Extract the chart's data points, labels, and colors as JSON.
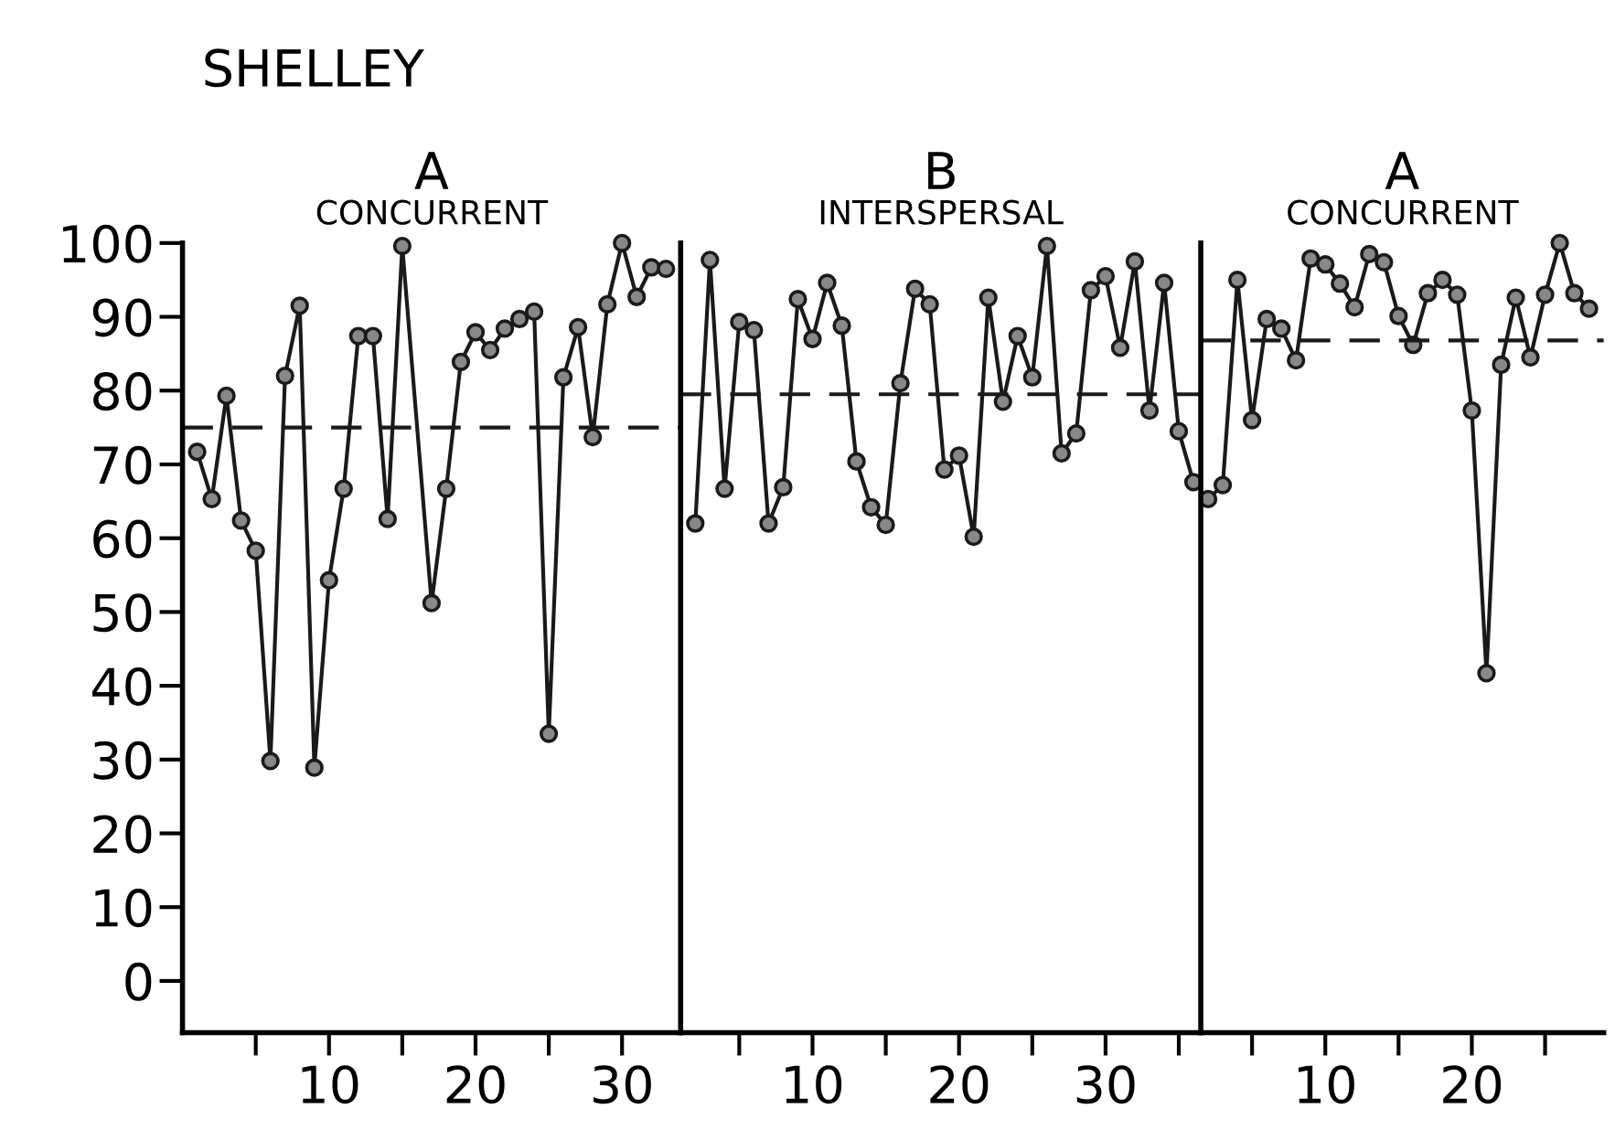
{
  "chart_data": [
    {
      "type": "line",
      "title": "SHELLEY",
      "annotations": [
        "A",
        "CONCURRENT"
      ],
      "series": [
        {
          "color": "#1a1a1a",
          "marker": "circle",
          "x": [
            1,
            2,
            3,
            4,
            5,
            6,
            7,
            8,
            9,
            10,
            11,
            12,
            13,
            14,
            15,
            17,
            18,
            19,
            20,
            21,
            22,
            23,
            24,
            25,
            26,
            27,
            28,
            29,
            30,
            31,
            32,
            33
          ],
          "values": [
            71.7,
            65.3,
            79.3,
            62.4,
            58.3,
            29.8,
            82.0,
            91.5,
            28.9,
            54.3,
            66.7,
            87.4,
            87.4,
            62.6,
            99.6,
            51.2,
            66.7,
            83.9,
            87.9,
            85.5,
            88.4,
            89.7,
            90.7,
            33.5,
            81.8,
            88.6,
            73.7,
            91.7,
            100,
            92.7,
            96.7,
            96.5
          ]
        },
        {
          "color": "#1a1a1a",
          "marker": "none",
          "line_style": "dashed",
          "x": [
            0,
            34
          ],
          "values": [
            75,
            75
          ]
        }
      ],
      "xlim": [
        0,
        34
      ],
      "xticks": [
        {
          "value": 5,
          "label": null
        },
        10,
        {
          "value": 15,
          "label": null
        },
        20,
        {
          "value": 25,
          "label": null
        },
        30
      ],
      "ylim": [
        -7,
        100
      ],
      "yticks": [
        0,
        10,
        20,
        30,
        40,
        50,
        60,
        70,
        80,
        90,
        100
      ],
      "grid": false
    },
    {
      "type": "line",
      "annotations": [
        "B",
        "INTERSPERSAL"
      ],
      "series": [
        {
          "color": "#1a1a1a",
          "marker": "circle",
          "x": [
            2,
            3,
            4,
            5,
            6,
            7,
            8,
            9,
            10,
            11,
            12,
            13,
            14,
            15,
            16,
            17,
            18,
            19,
            20,
            21,
            22,
            23,
            24,
            25,
            26,
            27,
            28,
            29,
            30,
            31,
            32,
            33,
            34,
            35,
            36
          ],
          "values": [
            62.0,
            97.7,
            66.7,
            89.3,
            88.2,
            62.0,
            66.9,
            92.4,
            87.0,
            94.6,
            88.8,
            70.4,
            64.2,
            61.8,
            81.0,
            93.8,
            91.7,
            69.3,
            71.2,
            60.2,
            92.6,
            78.5,
            87.4,
            81.8,
            99.6,
            71.5,
            74.2,
            93.6,
            95.5,
            85.8,
            97.5,
            77.3,
            94.6,
            74.5,
            67.6
          ]
        },
        {
          "color": "#1a1a1a",
          "marker": "none",
          "line_style": "dashed",
          "x": [
            1,
            36.5
          ],
          "values": [
            79.5,
            79.5
          ]
        }
      ],
      "xlim": [
        1,
        36.5
      ],
      "xticks": [
        {
          "value": 5,
          "label": null
        },
        10,
        {
          "value": 15,
          "label": null
        },
        20,
        {
          "value": 25,
          "label": null
        },
        30,
        {
          "value": 35,
          "label": null
        }
      ],
      "ylim": [
        -7,
        100
      ],
      "tick_labels": "x",
      "grid": false
    },
    {
      "type": "line",
      "annotations": [
        "A",
        "CONCURRENT"
      ],
      "series": [
        {
          "color": "#1a1a1a",
          "marker": "circle",
          "x": [
            2,
            3,
            4,
            5,
            6,
            7,
            8,
            9,
            10,
            11,
            12,
            13,
            14,
            15,
            16,
            17,
            18,
            19,
            20,
            21,
            22,
            23,
            24,
            25,
            26,
            27,
            28
          ],
          "values": [
            65.3,
            67.2,
            95.0,
            76.0,
            89.7,
            88.4,
            84.1,
            97.9,
            97.1,
            94.5,
            91.3,
            98.5,
            97.4,
            90.1,
            86.2,
            93.2,
            95.0,
            93.0,
            77.3,
            41.7,
            83.5,
            92.6,
            84.5,
            93.0,
            100,
            93.2,
            91.1
          ]
        },
        {
          "color": "#1a1a1a",
          "marker": "none",
          "line_style": "dashed",
          "x": [
            1.5,
            29
          ],
          "values": [
            86.8,
            86.8
          ]
        }
      ],
      "xlim": [
        1.5,
        29
      ],
      "xticks": [
        {
          "value": 5,
          "label": null
        },
        10,
        {
          "value": 15,
          "label": null
        },
        20,
        {
          "value": 25,
          "label": null
        }
      ],
      "ylim": [
        -7,
        100
      ],
      "tick_labels": "x",
      "grid": false
    }
  ]
}
